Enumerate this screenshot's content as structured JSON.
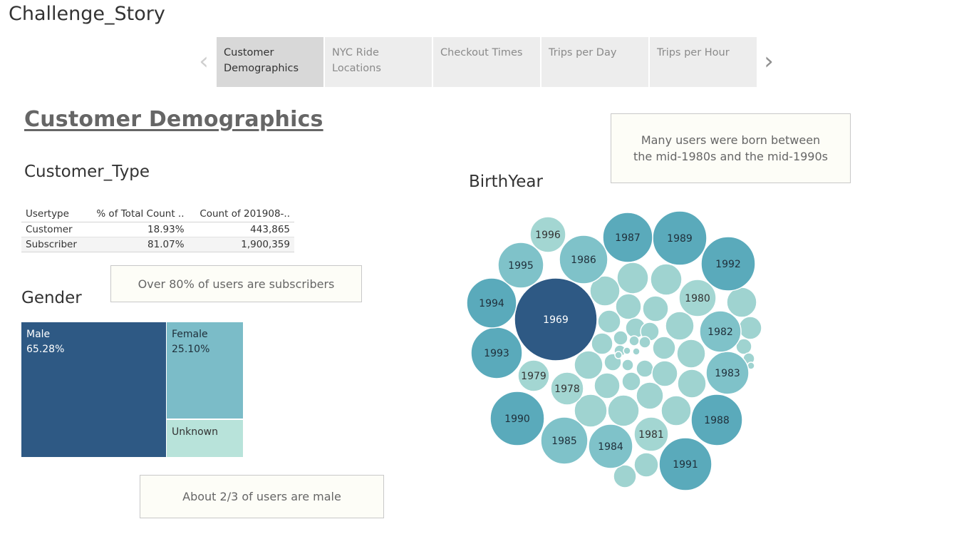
{
  "story": {
    "title": "Challenge_Story",
    "nav": {
      "prev_icon": "chevron-left-icon",
      "next_icon": "chevron-right-icon",
      "prev_glyph": "‹",
      "next_glyph": "›"
    },
    "tabs": [
      {
        "label": "Customer\nDemographics",
        "active": true
      },
      {
        "label": "NYC Ride\nLocations",
        "active": false
      },
      {
        "label": "Checkout Times",
        "active": false
      },
      {
        "label": "Trips per Day",
        "active": false
      },
      {
        "label": "Trips per Hour",
        "active": false
      }
    ]
  },
  "dashboard": {
    "title": "Customer Demographics",
    "customer_type": {
      "title": "Customer_Type",
      "columns": [
        "Usertype",
        "% of Total Count ..",
        "Count of 201908-.."
      ],
      "rows": [
        {
          "usertype": "Customer",
          "pct": "18.93%",
          "count": "443,865"
        },
        {
          "usertype": "Subscriber",
          "pct": "81.07%",
          "count": "1,900,359"
        }
      ],
      "note": "Over 80% of users are subscribers"
    },
    "gender": {
      "title": "Gender",
      "cells": [
        {
          "label": "Male",
          "pct": "65.28%",
          "color": "#2e5984"
        },
        {
          "label": "Female",
          "pct": "25.10%",
          "color": "#7bbcc8"
        },
        {
          "label": "Unknown",
          "pct": "",
          "color": "#b8e3da"
        }
      ],
      "note": "About 2/3 of users are male"
    },
    "birth_year": {
      "title": "BirthYear",
      "note": "Many users were born between the mid-1980s and the mid-1990s"
    }
  },
  "chart_data": [
    {
      "type": "table",
      "title": "Customer_Type",
      "columns": [
        "Usertype",
        "% of Total Count ..",
        "Count of 201908-.."
      ],
      "rows": [
        [
          "Customer",
          "18.93%",
          "443,865"
        ],
        [
          "Subscriber",
          "81.07%",
          "1,900,359"
        ]
      ]
    },
    {
      "type": "treemap",
      "title": "Gender",
      "categories": [
        "Male",
        "Female",
        "Unknown"
      ],
      "values": [
        65.28,
        25.1,
        9.62
      ],
      "colors": [
        "#2e5984",
        "#7bbcc8",
        "#b8e3da"
      ]
    },
    {
      "type": "packed-bubble",
      "title": "BirthYear",
      "labeled": [
        "1969",
        "1989",
        "1987",
        "1992",
        "1988",
        "1991",
        "1990",
        "1993",
        "1994",
        "1983",
        "1985",
        "1982",
        "1986",
        "1995",
        "1980",
        "1984",
        "1981",
        "1978",
        "1979",
        "1996"
      ],
      "color_scale": [
        "#b4ddd7",
        "#2e5984"
      ]
    }
  ]
}
